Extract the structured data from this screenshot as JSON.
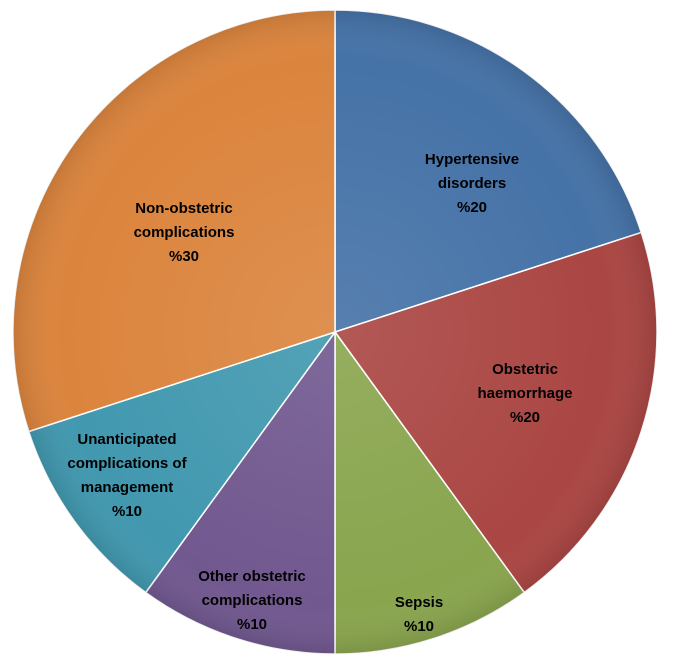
{
  "chart_data": {
    "type": "pie",
    "title": "",
    "start_angle_deg": 0,
    "direction": "clockwise",
    "slices": [
      {
        "label_lines": [
          "Hypertensive",
          "disorders"
        ],
        "value_text": "%20",
        "value": 20,
        "color": "#4572A7"
      },
      {
        "label_lines": [
          "Obstetric",
          "haemorrhage"
        ],
        "value_text": "%20",
        "value": 20,
        "color": "#AA4643"
      },
      {
        "label_lines": [
          "Sepsis"
        ],
        "value_text": "%10",
        "value": 10,
        "color": "#89A54E"
      },
      {
        "label_lines": [
          "Other obstetric",
          "complications"
        ],
        "value_text": "%10",
        "value": 10,
        "color": "#71588F"
      },
      {
        "label_lines": [
          "Unanticipated",
          "complications of",
          "management"
        ],
        "value_text": "%10",
        "value": 10,
        "color": "#4198AF"
      },
      {
        "label_lines": [
          "Non-obstetric",
          "complications"
        ],
        "value_text": "%30",
        "value": 30,
        "color": "#DB843D"
      }
    ]
  }
}
